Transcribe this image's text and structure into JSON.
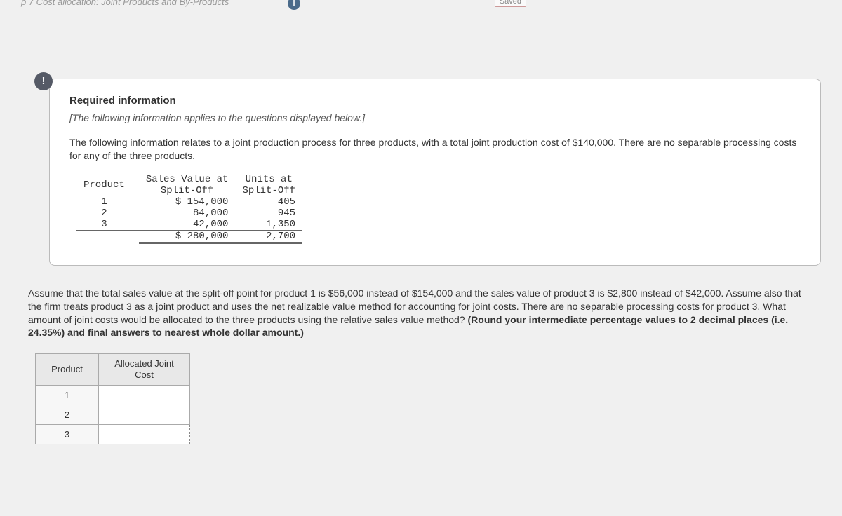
{
  "topbar": {
    "title_fragment": "p 7  Cost allocation: Joint Products and By-Products",
    "info_icon": "i",
    "saved_label": "Saved"
  },
  "alert_icon": "!",
  "required": {
    "heading": "Required information",
    "subtitle": "[The following information applies to the questions displayed below.]",
    "paragraph": "The following information relates to a joint production process for three products, with a total joint production cost of $140,000. There are no separable processing costs for any of the three products."
  },
  "data_table": {
    "col_product": "Product",
    "col_sales": "Sales Value at\nSplit-Off",
    "col_units": "Units at\nSplit-Off",
    "rows": [
      {
        "product": "1",
        "sales": "$ 154,000",
        "units": "405"
      },
      {
        "product": "2",
        "sales": "84,000",
        "units": "945"
      },
      {
        "product": "3",
        "sales": "42,000",
        "units": "1,350"
      }
    ],
    "totals": {
      "sales": "$ 280,000",
      "units": "2,700"
    }
  },
  "question": {
    "text_plain": "Assume that the total sales value at the split-off point for product 1 is $56,000 instead of $154,000 and the sales value of product 3 is $2,800 instead of $42,000. Assume also that the firm treats product 3 as a joint product and uses the net realizable value method for accounting for joint costs. There are no separable processing costs for product 3. What amount of joint costs would be allocated to the three products using the relative sales value method? ",
    "text_bold": "(Round your intermediate percentage values to 2 decimal places (i.e. 24.35%) and final answers to nearest whole dollar amount.)"
  },
  "answer_table": {
    "header_product": "Product",
    "header_alloc": "Allocated Joint Cost",
    "rows": [
      {
        "label": "1",
        "value": ""
      },
      {
        "label": "2",
        "value": ""
      },
      {
        "label": "3",
        "value": ""
      }
    ]
  }
}
